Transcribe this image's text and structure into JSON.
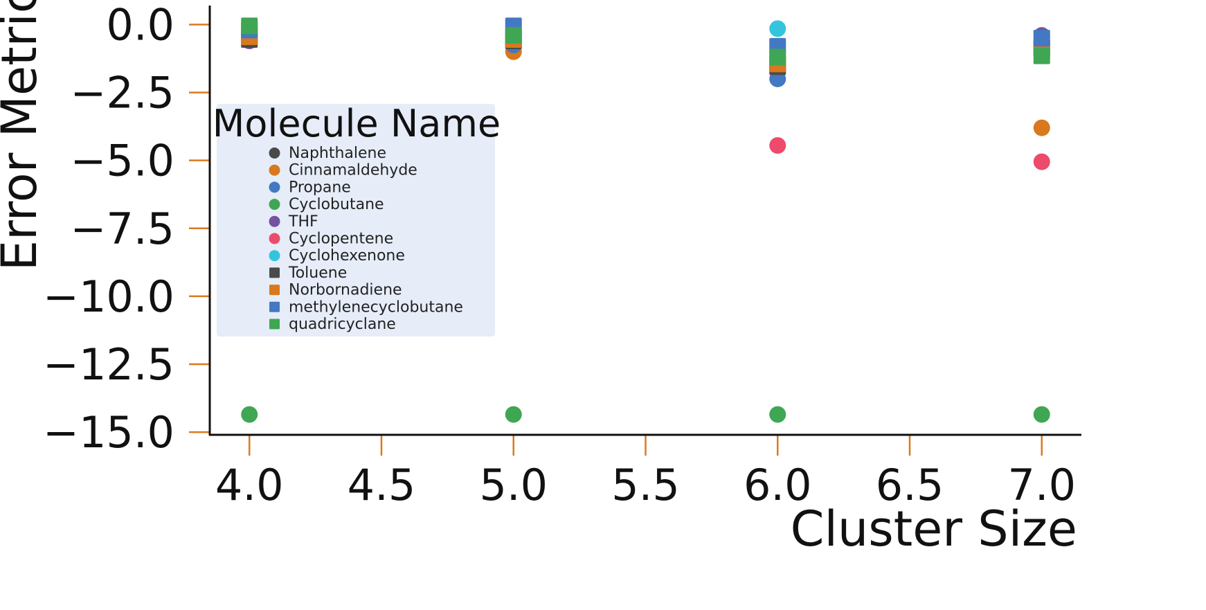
{
  "chart_data": {
    "type": "scatter",
    "xlabel": "Cluster Size",
    "ylabel": "Error Metric",
    "xlim": [
      3.85,
      7.15
    ],
    "ylim": [
      -15.1,
      0.7
    ],
    "xticks": [
      4.0,
      4.5,
      5.0,
      5.5,
      6.0,
      6.5,
      7.0
    ],
    "xtick_labels": [
      "4.0",
      "4.5",
      "5.0",
      "5.5",
      "6.0",
      "6.5",
      "7.0"
    ],
    "yticks": [
      0.0,
      -2.5,
      -5.0,
      -7.5,
      -10.0,
      -12.5,
      -15.0
    ],
    "ytick_labels": [
      "0.0",
      "−2.5",
      "−5.0",
      "−7.5",
      "−10.0",
      "−12.5",
      "−15.0"
    ],
    "tick_color": "#d97a1c",
    "grid": false,
    "legend": {
      "title": "Molecule Name",
      "placement": "center-left",
      "background": "#e6edf8"
    },
    "series": [
      {
        "name": "Naphthalene",
        "marker": "circle",
        "color": "#4a4a4a",
        "x": [
          4,
          5,
          6,
          7
        ],
        "y": [
          -0.55,
          -0.7,
          -1.6,
          -0.85
        ]
      },
      {
        "name": "Cinnamaldehyde",
        "marker": "circle",
        "color": "#d9781c",
        "x": [
          4,
          5,
          6,
          7
        ],
        "y": [
          -0.4,
          -1.0,
          -1.5,
          -3.8
        ]
      },
      {
        "name": "Propane",
        "marker": "circle",
        "color": "#4378c2",
        "x": [
          4,
          5,
          6,
          7
        ],
        "y": [
          -0.35,
          -0.75,
          -2.0,
          -0.6
        ]
      },
      {
        "name": "Cyclobutane",
        "marker": "circle",
        "color": "#3fa653",
        "x": [
          4,
          5,
          6,
          7
        ],
        "y": [
          -14.35,
          -14.35,
          -14.35,
          -14.35
        ]
      },
      {
        "name": "THF",
        "marker": "circle",
        "color": "#7352a0",
        "x": [
          4,
          5,
          6,
          7
        ],
        "y": [
          -0.6,
          -0.5,
          -1.2,
          -0.4
        ]
      },
      {
        "name": "Cyclopentene",
        "marker": "circle",
        "color": "#ee4a6c",
        "x": [
          6,
          7
        ],
        "y": [
          -4.45,
          -5.05
        ]
      },
      {
        "name": "Cyclohexenone",
        "marker": "circle",
        "color": "#35c4dd",
        "x": [
          4,
          5,
          6,
          7
        ],
        "y": [
          -0.2,
          -0.3,
          -0.15,
          -0.7
        ]
      },
      {
        "name": "Toluene",
        "marker": "square",
        "color": "#4a4a4a",
        "x": [
          4,
          5,
          6,
          7
        ],
        "y": [
          -0.55,
          -0.6,
          -1.55,
          -0.85
        ]
      },
      {
        "name": "Norbornadiene",
        "marker": "square",
        "color": "#d9781c",
        "x": [
          4,
          5,
          6,
          7
        ],
        "y": [
          -0.45,
          -0.55,
          -1.45,
          -0.9
        ]
      },
      {
        "name": "methylenecyclobutane",
        "marker": "square",
        "color": "#4378c2",
        "x": [
          4,
          5,
          6,
          7
        ],
        "y": [
          -0.2,
          -0.05,
          -0.8,
          -0.5
        ]
      },
      {
        "name": "quadricyclane",
        "marker": "square",
        "color": "#3fa653",
        "x": [
          4,
          5,
          6,
          7
        ],
        "y": [
          -0.05,
          -0.4,
          -1.2,
          -1.15
        ]
      }
    ]
  }
}
